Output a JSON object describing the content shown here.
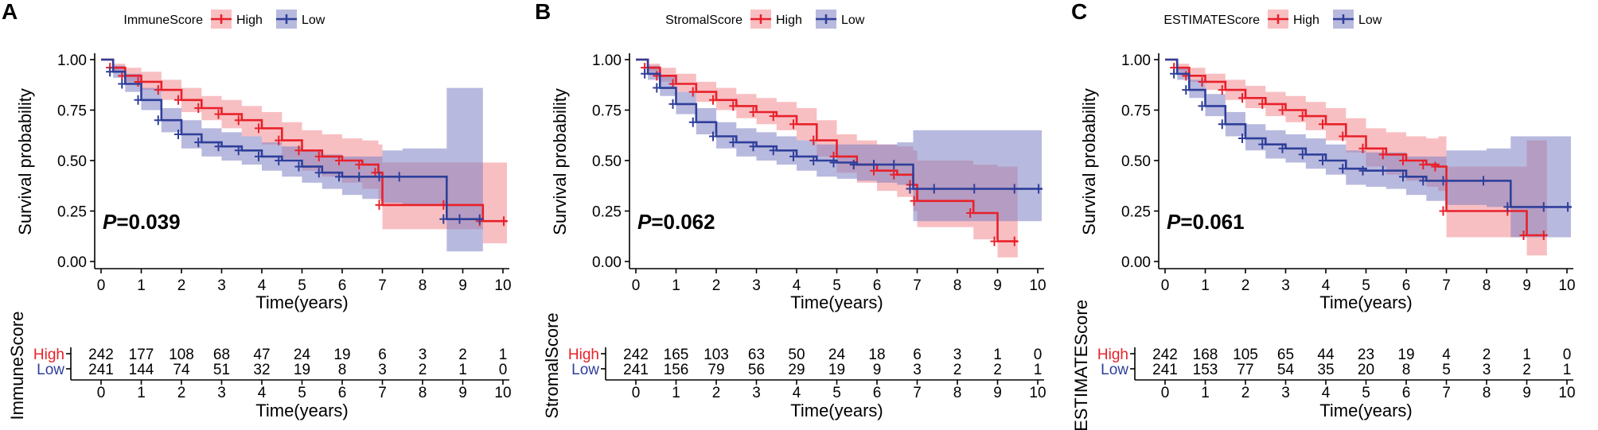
{
  "figure": {
    "description_free": true
  },
  "chart_data": [
    {
      "type": "line",
      "panel": "A",
      "legend_title": "ImmuneScore",
      "series": [
        {
          "name": "High",
          "color": "#e8202a",
          "band_color": "#f28a8f",
          "x": [
            0,
            0.3,
            0.6,
            1,
            1.5,
            2,
            2.5,
            3,
            3.5,
            4,
            4.5,
            5,
            5.5,
            6,
            6.5,
            6.9,
            7.0,
            8.6,
            9.5,
            10.1
          ],
          "y": [
            1,
            0.96,
            0.92,
            0.89,
            0.85,
            0.8,
            0.76,
            0.73,
            0.7,
            0.66,
            0.6,
            0.55,
            0.52,
            0.5,
            0.48,
            0.44,
            0.28,
            0.28,
            0.2,
            0.2
          ],
          "lower": [
            1,
            0.94,
            0.89,
            0.85,
            0.8,
            0.74,
            0.7,
            0.66,
            0.62,
            0.58,
            0.51,
            0.45,
            0.42,
            0.39,
            0.36,
            0.3,
            0.16,
            0.16,
            0.09,
            0.09
          ],
          "upper": [
            1,
            0.98,
            0.96,
            0.94,
            0.9,
            0.86,
            0.82,
            0.8,
            0.77,
            0.74,
            0.69,
            0.65,
            0.63,
            0.61,
            0.6,
            0.58,
            0.49,
            0.49,
            0.49,
            0.49
          ]
        },
        {
          "name": "Low",
          "color": "#2e3f9a",
          "band_color": "#7d7fc2",
          "x": [
            0,
            0.3,
            0.6,
            1,
            1.5,
            2,
            2.5,
            3,
            3.5,
            4,
            4.5,
            5,
            5.5,
            6,
            6.5,
            7.0,
            7.5,
            8.6,
            9.0,
            9.5
          ],
          "y": [
            1,
            0.94,
            0.88,
            0.8,
            0.7,
            0.63,
            0.59,
            0.57,
            0.55,
            0.52,
            0.5,
            0.47,
            0.44,
            0.42,
            0.42,
            0.42,
            0.42,
            0.21,
            0.21,
            0.21
          ],
          "lower": [
            1,
            0.91,
            0.84,
            0.75,
            0.64,
            0.56,
            0.52,
            0.5,
            0.48,
            0.45,
            0.42,
            0.39,
            0.36,
            0.33,
            0.31,
            0.29,
            0.28,
            0.05,
            0.05,
            0.05
          ],
          "upper": [
            1,
            0.97,
            0.93,
            0.86,
            0.76,
            0.7,
            0.66,
            0.64,
            0.62,
            0.59,
            0.57,
            0.55,
            0.53,
            0.52,
            0.52,
            0.55,
            0.56,
            0.86,
            0.86,
            0.86
          ]
        }
      ],
      "pvalue_prefix": "P",
      "pvalue_text": "=0.039",
      "xlabel": "Time(years)",
      "ylabel": "Survival probability",
      "xticks": [
        "0",
        "1",
        "2",
        "3",
        "4",
        "5",
        "6",
        "7",
        "8",
        "9",
        "10"
      ],
      "yticks": [
        "0.00",
        "0.25",
        "0.50",
        "0.75",
        "1.00"
      ],
      "xlim": [
        0,
        10
      ],
      "ylim": [
        0,
        1
      ],
      "risk_table": {
        "ylabel": "ImmuneScore",
        "rows": [
          {
            "label": "High",
            "color": "#e8202a",
            "values": [
              "242",
              "177",
              "108",
              "68",
              "47",
              "24",
              "19",
              "6",
              "3",
              "2",
              "1"
            ]
          },
          {
            "label": "Low",
            "color": "#2e3f9a",
            "values": [
              "241",
              "144",
              "74",
              "51",
              "32",
              "19",
              "8",
              "3",
              "2",
              "1",
              "0"
            ]
          }
        ],
        "xlabel": "Time(years)"
      }
    },
    {
      "type": "line",
      "panel": "B",
      "legend_title": "StromalScore",
      "series": [
        {
          "name": "High",
          "color": "#e8202a",
          "band_color": "#f28a8f",
          "x": [
            0,
            0.3,
            0.6,
            1,
            1.5,
            2,
            2.5,
            3,
            3.5,
            4,
            4.5,
            5,
            5.5,
            6,
            6.5,
            6.9,
            7.0,
            8.4,
            9.0,
            9.5
          ],
          "y": [
            1,
            0.96,
            0.92,
            0.88,
            0.84,
            0.8,
            0.77,
            0.74,
            0.72,
            0.68,
            0.6,
            0.52,
            0.48,
            0.45,
            0.43,
            0.38,
            0.3,
            0.24,
            0.1,
            0.1
          ],
          "lower": [
            1,
            0.94,
            0.89,
            0.84,
            0.79,
            0.75,
            0.71,
            0.68,
            0.65,
            0.6,
            0.52,
            0.44,
            0.39,
            0.35,
            0.32,
            0.25,
            0.17,
            0.11,
            0.02,
            0.02
          ],
          "upper": [
            1,
            0.98,
            0.96,
            0.93,
            0.89,
            0.86,
            0.83,
            0.81,
            0.79,
            0.76,
            0.7,
            0.63,
            0.6,
            0.58,
            0.57,
            0.55,
            0.5,
            0.48,
            0.47,
            0.47
          ]
        },
        {
          "name": "Low",
          "color": "#2e3f9a",
          "band_color": "#7d7fc2",
          "x": [
            0,
            0.3,
            0.6,
            1,
            1.5,
            2,
            2.5,
            3,
            3.5,
            4,
            4.5,
            5,
            5.5,
            6,
            6.5,
            6.9,
            7.5,
            8.5,
            9.5,
            10.1
          ],
          "y": [
            1,
            0.93,
            0.86,
            0.78,
            0.69,
            0.62,
            0.59,
            0.57,
            0.55,
            0.52,
            0.5,
            0.49,
            0.48,
            0.48,
            0.48,
            0.36,
            0.36,
            0.36,
            0.36,
            0.36
          ],
          "lower": [
            1,
            0.9,
            0.82,
            0.73,
            0.63,
            0.56,
            0.52,
            0.5,
            0.48,
            0.45,
            0.42,
            0.41,
            0.4,
            0.39,
            0.38,
            0.2,
            0.2,
            0.2,
            0.2,
            0.2
          ],
          "upper": [
            1,
            0.97,
            0.92,
            0.84,
            0.76,
            0.69,
            0.66,
            0.64,
            0.62,
            0.6,
            0.58,
            0.58,
            0.58,
            0.58,
            0.59,
            0.65,
            0.65,
            0.65,
            0.65,
            0.65
          ]
        }
      ],
      "pvalue_prefix": "P",
      "pvalue_text": "=0.062",
      "xlabel": "Time(years)",
      "ylabel": "Survival probability",
      "xticks": [
        "0",
        "1",
        "2",
        "3",
        "4",
        "5",
        "6",
        "7",
        "8",
        "9",
        "10"
      ],
      "yticks": [
        "0.00",
        "0.25",
        "0.50",
        "0.75",
        "1.00"
      ],
      "xlim": [
        0,
        10
      ],
      "ylim": [
        0,
        1
      ],
      "risk_table": {
        "ylabel": "StromalScore",
        "rows": [
          {
            "label": "High",
            "color": "#e8202a",
            "values": [
              "242",
              "165",
              "103",
              "63",
              "50",
              "24",
              "18",
              "6",
              "3",
              "1",
              "0"
            ]
          },
          {
            "label": "Low",
            "color": "#2e3f9a",
            "values": [
              "241",
              "156",
              "79",
              "56",
              "29",
              "19",
              "9",
              "3",
              "2",
              "2",
              "1"
            ]
          }
        ],
        "xlabel": "Time(years)"
      }
    },
    {
      "type": "line",
      "panel": "C",
      "legend_title": "ESTIMATEScore",
      "series": [
        {
          "name": "High",
          "color": "#e8202a",
          "band_color": "#f28a8f",
          "x": [
            0,
            0.3,
            0.6,
            1,
            1.5,
            2,
            2.5,
            3,
            3.5,
            4,
            4.5,
            5,
            5.5,
            6,
            6.5,
            6.8,
            7.0,
            8.6,
            9.0,
            9.5
          ],
          "y": [
            1,
            0.96,
            0.92,
            0.89,
            0.85,
            0.81,
            0.78,
            0.75,
            0.72,
            0.68,
            0.62,
            0.56,
            0.53,
            0.5,
            0.48,
            0.47,
            0.25,
            0.25,
            0.13,
            0.13
          ],
          "lower": [
            1,
            0.94,
            0.89,
            0.85,
            0.8,
            0.76,
            0.72,
            0.69,
            0.65,
            0.6,
            0.54,
            0.47,
            0.43,
            0.4,
            0.37,
            0.35,
            0.12,
            0.12,
            0.03,
            0.03
          ],
          "upper": [
            1,
            0.98,
            0.96,
            0.93,
            0.9,
            0.87,
            0.84,
            0.82,
            0.79,
            0.76,
            0.71,
            0.66,
            0.64,
            0.62,
            0.61,
            0.62,
            0.47,
            0.47,
            0.6,
            0.6
          ]
        },
        {
          "name": "Low",
          "color": "#2e3f9a",
          "band_color": "#7d7fc2",
          "x": [
            0,
            0.3,
            0.6,
            1,
            1.5,
            2,
            2.5,
            3,
            3.5,
            4,
            4.5,
            5,
            5.5,
            6,
            6.5,
            7.0,
            8.0,
            8.6,
            9.5,
            10.1
          ],
          "y": [
            1,
            0.93,
            0.85,
            0.77,
            0.68,
            0.61,
            0.58,
            0.56,
            0.53,
            0.5,
            0.46,
            0.45,
            0.45,
            0.42,
            0.4,
            0.4,
            0.4,
            0.27,
            0.27,
            0.27
          ],
          "lower": [
            1,
            0.9,
            0.81,
            0.72,
            0.62,
            0.55,
            0.51,
            0.49,
            0.46,
            0.43,
            0.38,
            0.37,
            0.36,
            0.33,
            0.3,
            0.28,
            0.27,
            0.12,
            0.12,
            0.12
          ],
          "upper": [
            1,
            0.96,
            0.9,
            0.83,
            0.74,
            0.68,
            0.65,
            0.63,
            0.61,
            0.58,
            0.55,
            0.54,
            0.54,
            0.52,
            0.52,
            0.55,
            0.56,
            0.62,
            0.62,
            0.62
          ]
        }
      ],
      "pvalue_prefix": "P",
      "pvalue_text": "=0.061",
      "xlabel": "Time(years)",
      "ylabel": "Survival probability",
      "xticks": [
        "0",
        "1",
        "2",
        "3",
        "4",
        "5",
        "6",
        "7",
        "8",
        "9",
        "10"
      ],
      "yticks": [
        "0.00",
        "0.25",
        "0.50",
        "0.75",
        "1.00"
      ],
      "xlim": [
        0,
        10
      ],
      "ylim": [
        0,
        1
      ],
      "risk_table": {
        "ylabel": "ESTIMATEScore",
        "rows": [
          {
            "label": "High",
            "color": "#e8202a",
            "values": [
              "242",
              "168",
              "105",
              "65",
              "44",
              "23",
              "19",
              "4",
              "2",
              "1",
              "0"
            ]
          },
          {
            "label": "Low",
            "color": "#2e3f9a",
            "values": [
              "241",
              "153",
              "77",
              "54",
              "35",
              "20",
              "8",
              "5",
              "3",
              "2",
              "1"
            ]
          }
        ],
        "xlabel": "Time(years)"
      }
    }
  ]
}
